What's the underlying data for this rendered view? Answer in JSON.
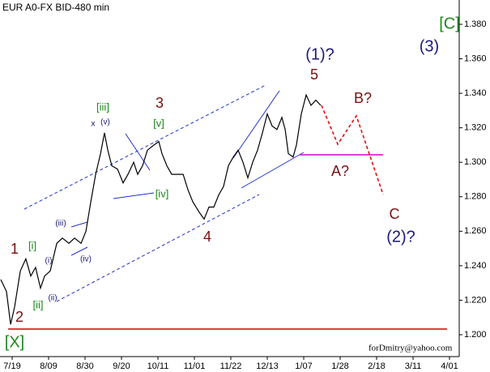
{
  "chart_data": {
    "type": "line",
    "title": "EUR A0-FX BID-480 min",
    "footer": "forDmitry@yahoo.com",
    "series": [
      {
        "name": "EUR A0-FX",
        "color": "#000000",
        "x": [
          -0.93,
          -0.47,
          -0.13,
          0.2,
          0.67,
          1.13,
          1.53,
          1.93,
          2.33,
          2.67,
          3.13,
          3.67,
          4.13,
          4.67,
          5.13,
          5.67,
          6.07,
          6.47,
          6.87,
          7.27,
          7.6,
          7.87,
          8.2,
          8.67,
          9.13,
          9.53,
          10,
          10.33,
          10.73,
          11.13,
          11.67,
          12.07,
          12.33,
          12.73,
          13.13,
          13.53,
          14.07,
          14.47,
          14.87,
          15.4,
          15.8,
          16.2,
          16.6,
          17,
          17.4,
          17.8,
          18.2,
          18.6,
          19,
          19.4,
          19.8,
          20.2,
          20.6,
          21,
          21.4,
          21.8,
          22.2,
          22.47,
          22.73,
          23.13,
          23.4,
          23.8,
          24.2,
          24.6,
          25,
          25.4
        ],
        "values": [
          1.232,
          1.225,
          1.206,
          1.216,
          1.237,
          1.244,
          1.234,
          1.239,
          1.227,
          1.234,
          1.237,
          1.253,
          1.256,
          1.253,
          1.256,
          1.253,
          1.26,
          1.277,
          1.293,
          1.305,
          1.317,
          1.307,
          1.298,
          1.296,
          1.288,
          1.293,
          1.3,
          1.293,
          1.298,
          1.307,
          1.31,
          1.312,
          1.305,
          1.298,
          1.293,
          1.293,
          1.293,
          1.284,
          1.277,
          1.271,
          1.267,
          1.274,
          1.274,
          1.281,
          1.286,
          1.298,
          1.303,
          1.307,
          1.3,
          1.291,
          1.3,
          1.307,
          1.317,
          1.328,
          1.321,
          1.319,
          1.326,
          1.319,
          1.305,
          1.303,
          1.31,
          1.328,
          1.339,
          1.333,
          1.336,
          1.333
        ]
      }
    ],
    "xlim": [
      -1,
      36.8
    ],
    "xticks": [
      {
        "value": 0,
        "label": "7/19"
      },
      {
        "value": 3,
        "label": "8/09"
      },
      {
        "value": 6,
        "label": "8/30"
      },
      {
        "value": 9,
        "label": "9/20"
      },
      {
        "value": 12,
        "label": "10/11"
      },
      {
        "value": 15,
        "label": "11/01"
      },
      {
        "value": 18,
        "label": "11/22"
      },
      {
        "value": 21,
        "label": "12/13"
      },
      {
        "value": 24,
        "label": "1/07"
      },
      {
        "value": 27,
        "label": "1/28"
      },
      {
        "value": 30,
        "label": "2/18"
      },
      {
        "value": 33,
        "label": "3/11"
      },
      {
        "value": 36,
        "label": "4/01"
      }
    ],
    "ylim": [
      1.1873,
      1.3941
    ],
    "yticks": [
      {
        "value": 1.2,
        "label": "1.200"
      },
      {
        "value": 1.22,
        "label": "1.220"
      },
      {
        "value": 1.24,
        "label": "1.240"
      },
      {
        "value": 1.26,
        "label": "1.260"
      },
      {
        "value": 1.28,
        "label": "1.280"
      },
      {
        "value": 1.3,
        "label": "1.300"
      },
      {
        "value": 1.32,
        "label": "1.320"
      },
      {
        "value": 1.34,
        "label": "1.340"
      },
      {
        "value": 1.36,
        "label": "1.360"
      },
      {
        "value": 1.38,
        "label": "1.380"
      }
    ],
    "annotations": [
      "[C]",
      "(3)",
      "(1)?",
      "5",
      "B?",
      "A?",
      "C",
      "(2)?",
      "3",
      "[iii]",
      "x",
      "(v)",
      "[v]",
      "[iv]",
      "4",
      "1",
      "[i]",
      "(iii)",
      "(i)",
      "(iv)",
      "(ii)",
      "[ii]",
      "2",
      "[X]"
    ]
  }
}
